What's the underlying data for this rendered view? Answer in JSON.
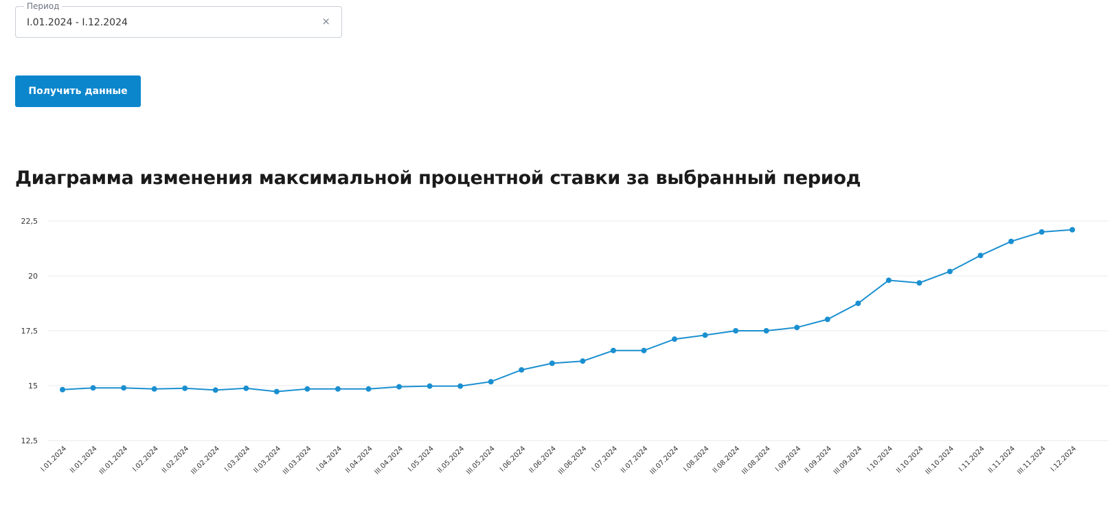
{
  "period_field": {
    "legend": "Период",
    "value": "I.01.2024 - I.12.2024",
    "clear_icon": "close-icon"
  },
  "fetch_button": {
    "label": "Получить данные"
  },
  "colors": {
    "accent": "#0b86cc",
    "line": "#1a8fd0",
    "grid": "#e6e9ee",
    "text": "#1a1a1a"
  },
  "chart_data": {
    "type": "line",
    "title": "Диаграмма изменения максимальной процентной ставки за выбранный период",
    "xlabel": "",
    "ylabel": "",
    "ylim": [
      12.5,
      22.5
    ],
    "yticks": [
      "12,5",
      "15",
      "17,5",
      "20",
      "22,5"
    ],
    "grid": true,
    "categories": [
      "I.01.2024",
      "II.01.2024",
      "III.01.2024",
      "I.02.2024",
      "II.02.2024",
      "III.02.2024",
      "I.03.2024",
      "II.03.2024",
      "III.03.2024",
      "I.04.2024",
      "II.04.2024",
      "III.04.2024",
      "I.05.2024",
      "II.05.2024",
      "III.05.2024",
      "I.06.2024",
      "II.06.2024",
      "III.06.2024",
      "I.07.2024",
      "II.07.2024",
      "III.07.2024",
      "I.08.2024",
      "II.08.2024",
      "III.08.2024",
      "I.09.2024",
      "II.09.2024",
      "III.09.2024",
      "I.10.2024",
      "II.10.2024",
      "III.10.2024",
      "I.11.2024",
      "II.11.2024",
      "III.11.2024",
      "I.12.2024"
    ],
    "series": [
      {
        "values": [
          14.82,
          14.9,
          14.9,
          14.85,
          14.88,
          14.8,
          14.88,
          14.73,
          14.85,
          14.85,
          14.85,
          14.95,
          14.98,
          14.98,
          15.18,
          15.72,
          16.02,
          16.12,
          16.6,
          16.6,
          17.12,
          17.3,
          17.5,
          17.5,
          17.65,
          18.02,
          18.75,
          19.8,
          19.68,
          20.2,
          20.93,
          21.57,
          22.0,
          22.1
        ]
      }
    ]
  }
}
